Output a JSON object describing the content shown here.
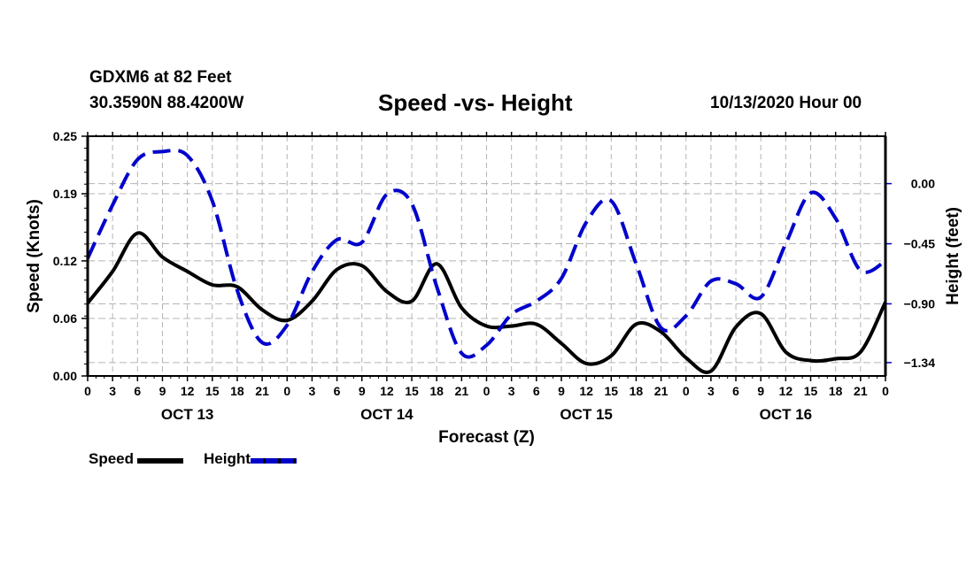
{
  "header": {
    "station": "GDXM6 at 82 Feet",
    "coords": "30.3590N 88.4200W",
    "title": "Speed -vs- Height",
    "datetime": "10/13/2020 Hour 00"
  },
  "legend": {
    "speed_label": "Speed",
    "height_label": "Height"
  },
  "colors": {
    "speed": "#000000",
    "height": "#0000cc",
    "grid": "#b4b4b4"
  },
  "chart_data": {
    "type": "line",
    "title": "Speed -vs- Height",
    "xlabel": "Forecast (Z)",
    "ylabel": "Speed (Knots)",
    "y2label": "Height (feet)",
    "xlim": [
      0,
      96
    ],
    "ylim": [
      0,
      0.25
    ],
    "y2lim": [
      -1.44,
      0.355
    ],
    "grid": true,
    "legend_position": "bottom-left",
    "x_tick_labels": [
      "0",
      "3",
      "6",
      "9",
      "12",
      "15",
      "18",
      "21",
      "0",
      "3",
      "6",
      "9",
      "12",
      "15",
      "18",
      "21",
      "0",
      "3",
      "6",
      "9",
      "12",
      "15",
      "18",
      "21",
      "0",
      "3",
      "6",
      "9",
      "12",
      "15",
      "18",
      "21",
      "0"
    ],
    "x_day_labels": [
      {
        "label": "OCT 13",
        "hour": 12
      },
      {
        "label": "OCT 14",
        "hour": 36
      },
      {
        "label": "OCT 15",
        "hour": 60
      },
      {
        "label": "OCT 16",
        "hour": 84
      }
    ],
    "y_ticks": [
      {
        "value": 0.0,
        "label": "0.00"
      },
      {
        "value": 0.06,
        "label": "0.06"
      },
      {
        "value": 0.12,
        "label": "0.12"
      },
      {
        "value": 0.19,
        "label": "0.19"
      },
      {
        "value": 0.25,
        "label": "0.25"
      }
    ],
    "y2_ticks": [
      {
        "value": 0.0,
        "label": "0.00"
      },
      {
        "value": -0.45,
        "label": "-0.45"
      },
      {
        "value": -0.9,
        "label": "-0.90"
      },
      {
        "value": -1.34,
        "label": "-1.34"
      }
    ],
    "x": [
      0,
      3,
      6,
      9,
      12,
      15,
      18,
      21,
      24,
      27,
      30,
      33,
      36,
      39,
      42,
      45,
      48,
      51,
      54,
      57,
      60,
      63,
      66,
      69,
      72,
      75,
      78,
      81,
      84,
      87,
      90,
      93,
      96
    ],
    "series": [
      {
        "name": "Speed",
        "axis": "left",
        "style": "solid",
        "values": [
          0.076,
          0.109,
          0.149,
          0.124,
          0.109,
          0.095,
          0.093,
          0.069,
          0.058,
          0.078,
          0.111,
          0.115,
          0.088,
          0.078,
          0.117,
          0.071,
          0.052,
          0.052,
          0.054,
          0.034,
          0.013,
          0.021,
          0.054,
          0.046,
          0.019,
          0.005,
          0.051,
          0.065,
          0.025,
          0.016,
          0.018,
          0.025,
          0.077
        ]
      },
      {
        "name": "Height",
        "axis": "right",
        "style": "dashed",
        "values": [
          -0.56,
          -0.16,
          0.18,
          0.24,
          0.21,
          -0.13,
          -0.8,
          -1.19,
          -1.06,
          -0.66,
          -0.42,
          -0.44,
          -0.08,
          -0.15,
          -0.77,
          -1.27,
          -1.21,
          -0.98,
          -0.88,
          -0.71,
          -0.29,
          -0.13,
          -0.6,
          -1.08,
          -0.99,
          -0.73,
          -0.75,
          -0.85,
          -0.45,
          -0.07,
          -0.26,
          -0.65,
          -0.58
        ]
      }
    ]
  }
}
